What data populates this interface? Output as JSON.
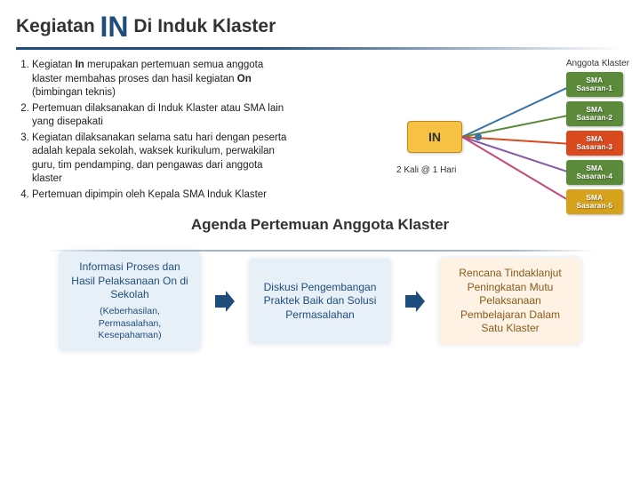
{
  "title": {
    "part1": "Kegiatan",
    "big": "IN",
    "part2": "Di Induk Klaster"
  },
  "list": {
    "items": [
      "Kegiatan <b>In</b> merupakan pertemuan semua anggota klaster membahas proses dan hasil kegiatan <b>On</b> (bimbingan teknis)",
      "Pertemuan dilaksanakan di Induk Klaster atau SMA lain yang disepakati",
      "Kegiatan dilaksanakan selama satu hari dengan peserta adalah kepala sekolah, waksek kurikulum, perwakilan guru, tim pendamping, dan pengawas dari anggota klaster",
      "Pertemuan dipimpin oleh Kepala SMA Induk Klaster"
    ]
  },
  "diagram": {
    "in_label": "IN",
    "in_caption": "2 Kali @ 1 Hari",
    "sma_header": "Anggota Klaster",
    "nodes": [
      {
        "label1": "SMA",
        "label2": "Sasaran-1",
        "color": "#5b8a3a"
      },
      {
        "label1": "SMA",
        "label2": "Sasaran-2",
        "color": "#5b8a3a"
      },
      {
        "label1": "SMA",
        "label2": "Sasaran-3",
        "color": "#d94a1f"
      },
      {
        "label1": "SMA",
        "label2": "Sasaran-4",
        "color": "#5b8a3a"
      },
      {
        "label1": "SMA",
        "label2": "Sasaran-5",
        "color": "#d6a21e"
      }
    ],
    "line_colors": [
      "#3b72a8",
      "#5b8a3a",
      "#d94a1f",
      "#8a5aa8",
      "#c44a7a"
    ]
  },
  "agenda": {
    "title": "Agenda Pertemuan Anggota Klaster",
    "boxes": [
      {
        "main": "Informasi Proses dan Hasil Pelaksanaan On di Sekolah",
        "sub": "(Keberhasilan, Permasalahan, Kesepahaman)",
        "style": "blue"
      },
      {
        "main": "Diskusi Pengembangan Praktek Baik dan Solusi Permasalahan",
        "sub": "",
        "style": "blue"
      },
      {
        "main": "Rencana Tindaklanjut Peningkatan Mutu Pelaksanaan Pembelajaran Dalam Satu Klaster",
        "sub": "",
        "style": "orange"
      }
    ],
    "arrow_color": "#1e4d7b"
  }
}
